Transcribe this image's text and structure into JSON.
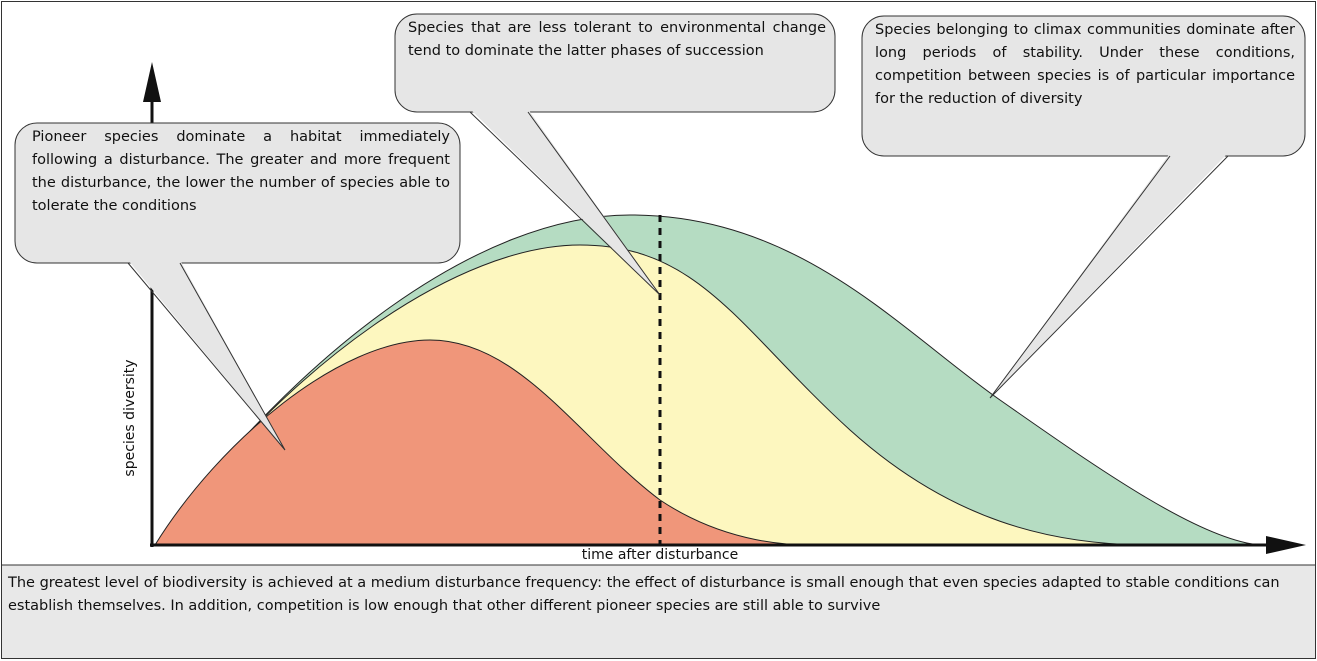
{
  "notes": [
    {
      "text": "Pioneer species dominate a habitat immediately following a disturbance. The greater and more frequent the disturbance, the lower the number of species able to tolerate the conditions"
    },
    {
      "text": "Species that are less tolerant to environmental change tend to dominate the latter phases of succession"
    },
    {
      "text": "Species belonging to climax communities dominate after long periods of stability. Under these conditions, competition between species is of particular importance for the reduction of diversity"
    }
  ],
  "axes": {
    "y_label": "species diversity",
    "x_label": "time after disturbance"
  },
  "caption": "The greatest level of biodiversity is achieved at a medium disturbance frequency: the effect of disturbance is small enough that even species adapted to stable conditions can establish themselves. In addition, competition is low enough that other different pioneer species are still able to survive"
}
